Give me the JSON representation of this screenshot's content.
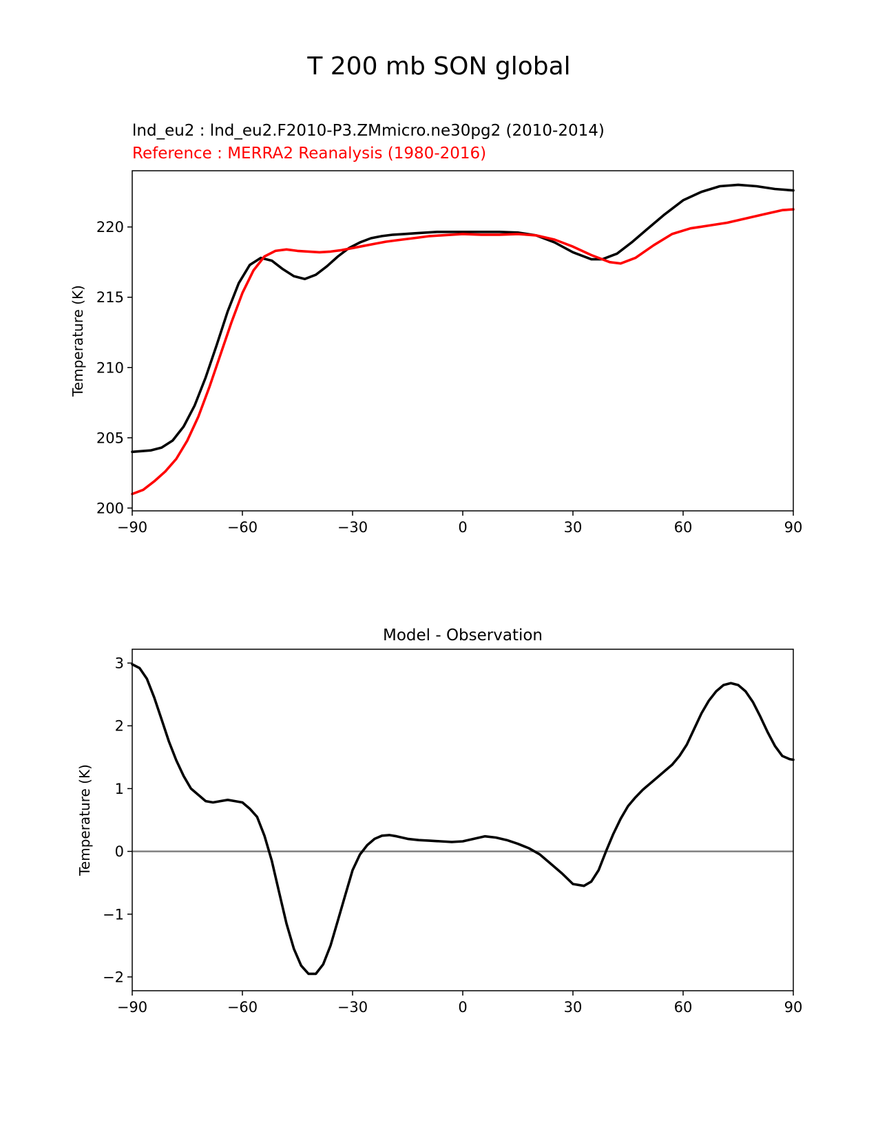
{
  "figure": {
    "suptitle": "T 200 mb SON global"
  },
  "chart_data": [
    {
      "type": "line",
      "title": "",
      "subtitle_model": "lnd_eu2 : lnd_eu2.F2010-P3.ZMmicro.ne30pg2 (2010-2014)",
      "subtitle_reference": "Reference : MERRA2 Reanalysis (1980-2016)",
      "xlabel": "",
      "ylabel": "Temperature (K)",
      "xlim": [
        -90,
        90
      ],
      "ylim": [
        199.8,
        224.0
      ],
      "xticks": [
        -90,
        -60,
        -30,
        0,
        30,
        60,
        90
      ],
      "xtick_labels": [
        "−90",
        "−60",
        "−30",
        "0",
        "30",
        "60",
        "90"
      ],
      "yticks": [
        200,
        205,
        210,
        215,
        220
      ],
      "ytick_labels": [
        "200",
        "205",
        "210",
        "215",
        "220"
      ],
      "grid": false,
      "series": [
        {
          "color": "#000000",
          "x": [
            -90,
            -85,
            -82,
            -79,
            -76,
            -73,
            -70,
            -67,
            -64,
            -61,
            -58,
            -55,
            -52,
            -49,
            -46,
            -43,
            -40,
            -37,
            -34,
            -31,
            -28,
            -25,
            -22,
            -19,
            -16,
            -13,
            -10,
            -7,
            -4,
            0,
            5,
            10,
            15,
            20,
            25,
            30,
            35,
            38,
            42,
            46,
            50,
            55,
            60,
            65,
            70,
            75,
            80,
            85,
            90
          ],
          "y": [
            204.0,
            204.1,
            204.3,
            204.8,
            205.8,
            207.3,
            209.3,
            211.6,
            214.0,
            216.0,
            217.3,
            217.8,
            217.6,
            217.0,
            216.5,
            216.3,
            216.6,
            217.2,
            217.9,
            218.5,
            218.9,
            219.2,
            219.35,
            219.45,
            219.5,
            219.55,
            219.6,
            219.65,
            219.65,
            219.65,
            219.65,
            219.65,
            219.6,
            219.4,
            218.9,
            218.2,
            217.7,
            217.7,
            218.1,
            218.9,
            219.8,
            220.9,
            221.9,
            222.5,
            222.9,
            223.0,
            222.9,
            222.7,
            222.6
          ]
        },
        {
          "color": "#ff0000",
          "x": [
            -90,
            -87,
            -84,
            -81,
            -78,
            -75,
            -72,
            -69,
            -66,
            -63,
            -60,
            -57,
            -54,
            -51,
            -48,
            -45,
            -42,
            -39,
            -36,
            -33,
            -30,
            -27,
            -24,
            -21,
            -18,
            -15,
            -12,
            -9,
            -6,
            -3,
            0,
            5,
            10,
            15,
            20,
            25,
            30,
            35,
            40,
            43,
            47,
            52,
            57,
            62,
            67,
            72,
            77,
            82,
            87,
            90
          ],
          "y": [
            201.0,
            201.3,
            201.9,
            202.6,
            203.5,
            204.8,
            206.5,
            208.6,
            210.9,
            213.2,
            215.3,
            216.9,
            217.9,
            218.3,
            218.4,
            218.3,
            218.25,
            218.2,
            218.25,
            218.35,
            218.5,
            218.65,
            218.8,
            218.95,
            219.05,
            219.15,
            219.25,
            219.35,
            219.4,
            219.45,
            219.5,
            219.45,
            219.45,
            219.5,
            219.4,
            219.1,
            218.6,
            218.0,
            217.5,
            217.4,
            217.8,
            218.7,
            219.5,
            219.9,
            220.1,
            220.3,
            220.6,
            220.9,
            221.2,
            221.25
          ]
        }
      ]
    },
    {
      "type": "line",
      "title": "Model - Observation",
      "xlabel": "",
      "ylabel": "Temperature (K)",
      "xlim": [
        -90,
        90
      ],
      "ylim": [
        -2.22,
        3.22
      ],
      "xticks": [
        -90,
        -60,
        -30,
        0,
        30,
        60,
        90
      ],
      "xtick_labels": [
        "−90",
        "−60",
        "−30",
        "0",
        "30",
        "60",
        "90"
      ],
      "yticks": [
        -2,
        -1,
        0,
        1,
        2,
        3
      ],
      "ytick_labels": [
        "−2",
        "−1",
        "0",
        "1",
        "2",
        "3"
      ],
      "grid": false,
      "zero_line": {
        "y": 0,
        "color": "#808080"
      },
      "series": [
        {
          "color": "#000000",
          "x": [
            -90,
            -88,
            -86,
            -84,
            -82,
            -80,
            -78,
            -76,
            -74,
            -72,
            -70,
            -68,
            -66,
            -64,
            -62,
            -60,
            -58,
            -56,
            -54,
            -52,
            -50,
            -48,
            -46,
            -44,
            -42,
            -40,
            -38,
            -36,
            -34,
            -32,
            -30,
            -28,
            -26,
            -24,
            -22,
            -20,
            -18,
            -15,
            -12,
            -9,
            -6,
            -3,
            0,
            3,
            6,
            9,
            12,
            15,
            18,
            21,
            24,
            27,
            30,
            33,
            35,
            37,
            39,
            41,
            43,
            45,
            47,
            49,
            51,
            53,
            55,
            57,
            59,
            61,
            63,
            65,
            67,
            69,
            71,
            73,
            75,
            77,
            79,
            81,
            83,
            85,
            87,
            89,
            90
          ],
          "y": [
            2.98,
            2.92,
            2.75,
            2.45,
            2.1,
            1.75,
            1.45,
            1.2,
            1.0,
            0.9,
            0.8,
            0.78,
            0.8,
            0.82,
            0.8,
            0.78,
            0.68,
            0.55,
            0.25,
            -0.15,
            -0.65,
            -1.15,
            -1.55,
            -1.82,
            -1.95,
            -1.95,
            -1.8,
            -1.5,
            -1.1,
            -0.7,
            -0.3,
            -0.05,
            0.1,
            0.2,
            0.25,
            0.26,
            0.24,
            0.2,
            0.18,
            0.17,
            0.16,
            0.15,
            0.16,
            0.2,
            0.24,
            0.22,
            0.18,
            0.12,
            0.05,
            -0.05,
            -0.2,
            -0.35,
            -0.52,
            -0.55,
            -0.48,
            -0.3,
            0.0,
            0.28,
            0.52,
            0.72,
            0.86,
            0.98,
            1.08,
            1.18,
            1.28,
            1.38,
            1.52,
            1.7,
            1.95,
            2.2,
            2.4,
            2.55,
            2.65,
            2.68,
            2.65,
            2.55,
            2.38,
            2.15,
            1.9,
            1.68,
            1.52,
            1.47,
            1.46
          ]
        }
      ]
    }
  ]
}
